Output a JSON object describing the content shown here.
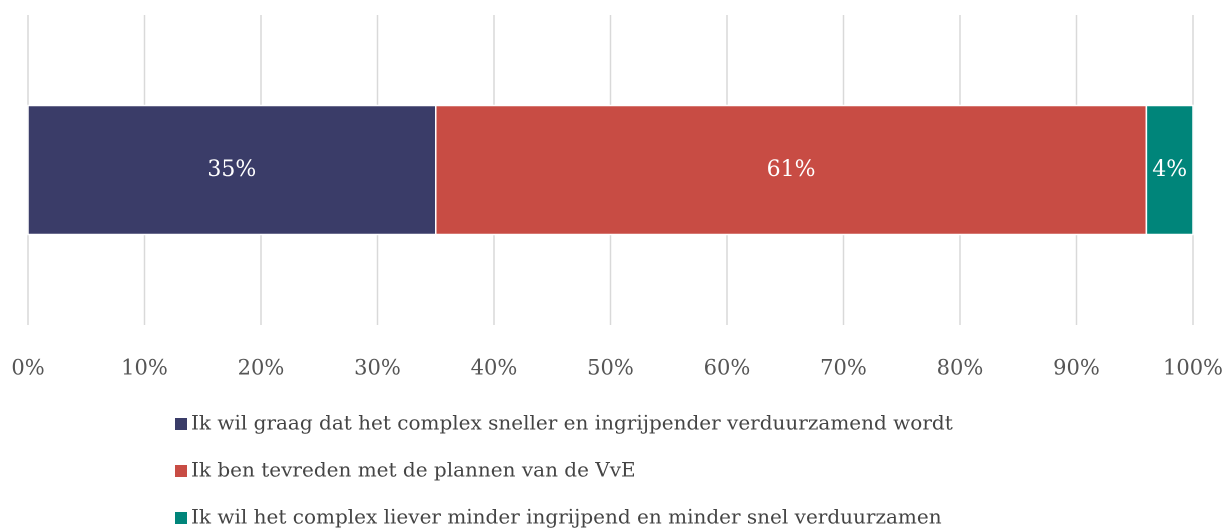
{
  "chart_data": {
    "type": "stacked_bar_horizontal",
    "categories": [
      null
    ],
    "series": [
      {
        "name": "Ik wil graag dat het complex sneller en ingrijpender verduurzamend wordt",
        "color": "#3a3c68",
        "values": [
          35
        ],
        "value_labels": [
          "35%"
        ]
      },
      {
        "name": "Ik ben tevreden met de plannen van de VvE",
        "color": "#c84c44",
        "values": [
          61
        ],
        "value_labels": [
          "61%"
        ]
      },
      {
        "name": "Ik wil het complex liever minder ingrijpend en minder snel verduurzamen",
        "color": "#00857a",
        "values": [
          4
        ],
        "value_labels": [
          "4%"
        ]
      }
    ],
    "xlim": [
      0,
      100
    ],
    "xticks": [
      {
        "value": 0,
        "label": "0%"
      },
      {
        "value": 10,
        "label": "10%"
      },
      {
        "value": 20,
        "label": "20%"
      },
      {
        "value": 30,
        "label": "30%"
      },
      {
        "value": 40,
        "label": "40%"
      },
      {
        "value": 50,
        "label": "50%"
      },
      {
        "value": 60,
        "label": "60%"
      },
      {
        "value": 70,
        "label": "70%"
      },
      {
        "value": 80,
        "label": "80%"
      },
      {
        "value": 90,
        "label": "90%"
      },
      {
        "value": 100,
        "label": "100%"
      }
    ],
    "grid": true,
    "legend": "bottom"
  }
}
